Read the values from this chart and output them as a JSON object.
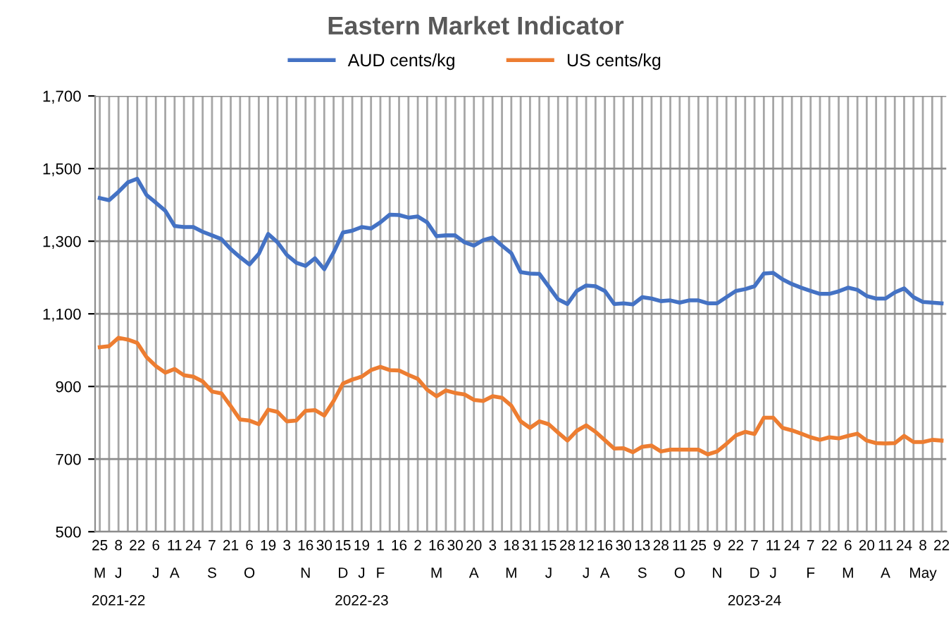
{
  "chart_data": {
    "type": "line",
    "title": "Eastern Market Indicator",
    "categories": [
      "25\nM",
      null,
      "8\nJ\n2021-22",
      null,
      "22",
      null,
      "6\nJ",
      null,
      "11\nA",
      null,
      "24",
      null,
      "7\nS",
      null,
      "21",
      null,
      "6\nO",
      null,
      "19",
      null,
      "3",
      null,
      "16\nN",
      null,
      "30",
      null,
      "15\nD",
      null,
      "19\nJ\n2022-23",
      null,
      "1\nF",
      null,
      "16",
      null,
      "2",
      null,
      "16\nM",
      null,
      "30",
      null,
      "20\nA",
      null,
      "3",
      null,
      "18\nM",
      null,
      "31",
      null,
      "15\nJ",
      null,
      "28",
      null,
      "12\nJ",
      null,
      "16\nA",
      null,
      "30",
      null,
      "13\nS",
      null,
      "28",
      null,
      "11\nO",
      null,
      "25",
      null,
      "9\nN",
      null,
      "22",
      null,
      "7\nD\n2023-24",
      null,
      "11\nJ",
      null,
      "24",
      null,
      "7\nF",
      null,
      "22",
      null,
      "6\nM",
      null,
      "20",
      null,
      "11\nA",
      null,
      "24",
      null,
      "8\nMay",
      null,
      "22"
    ],
    "series": [
      {
        "name": "AUD cents/kg",
        "color": "#4472c4",
        "values": [
          1419,
          1413,
          1436,
          1462,
          1472,
          1427,
          1406,
          1384,
          1342,
          1339,
          1339,
          1326,
          1316,
          1306,
          1278,
          1256,
          1236,
          1265,
          1320,
          1297,
          1262,
          1241,
          1232,
          1253,
          1223,
          1269,
          1324,
          1329,
          1339,
          1335,
          1352,
          1373,
          1372,
          1365,
          1368,
          1352,
          1314,
          1316,
          1316,
          1297,
          1288,
          1303,
          1310,
          1288,
          1267,
          1215,
          1211,
          1210,
          1175,
          1140,
          1127,
          1163,
          1178,
          1176,
          1163,
          1127,
          1129,
          1126,
          1146,
          1142,
          1135,
          1137,
          1131,
          1137,
          1137,
          1129,
          1129,
          1146,
          1163,
          1168,
          1176,
          1211,
          1213,
          1195,
          1182,
          1172,
          1163,
          1155,
          1155,
          1162,
          1172,
          1166,
          1149,
          1142,
          1142,
          1159,
          1170,
          1146,
          1133,
          1131,
          1129
        ]
      },
      {
        "name": "US cents/kg",
        "color": "#ed7d31",
        "values": [
          1008,
          1011,
          1034,
          1029,
          1020,
          981,
          956,
          938,
          948,
          931,
          927,
          914,
          886,
          881,
          846,
          809,
          806,
          796,
          836,
          830,
          804,
          806,
          833,
          835,
          820,
          860,
          908,
          919,
          927,
          945,
          954,
          945,
          944,
          932,
          921,
          891,
          873,
          889,
          882,
          878,
          863,
          860,
          873,
          869,
          847,
          804,
          786,
          804,
          796,
          773,
          751,
          778,
          793,
          775,
          752,
          729,
          730,
          719,
          734,
          737,
          721,
          726,
          726,
          726,
          726,
          713,
          721,
          742,
          765,
          775,
          769,
          814,
          814,
          786,
          779,
          770,
          760,
          753,
          760,
          757,
          764,
          770,
          751,
          744,
          743,
          744,
          764,
          747,
          747,
          753,
          751
        ]
      }
    ],
    "ylim": [
      500,
      1700
    ],
    "yticks": [
      {
        "value": 500,
        "label": "500"
      },
      {
        "value": 700,
        "label": "700"
      },
      {
        "value": 900,
        "label": "900"
      },
      {
        "value": 1100,
        "label": "1,100"
      },
      {
        "value": 1300,
        "label": "1,300"
      },
      {
        "value": 1500,
        "label": "1,500"
      },
      {
        "value": 1700,
        "label": "1,700"
      }
    ],
    "grid": true,
    "legend": "top",
    "marker": "none",
    "line_style": "solid"
  }
}
